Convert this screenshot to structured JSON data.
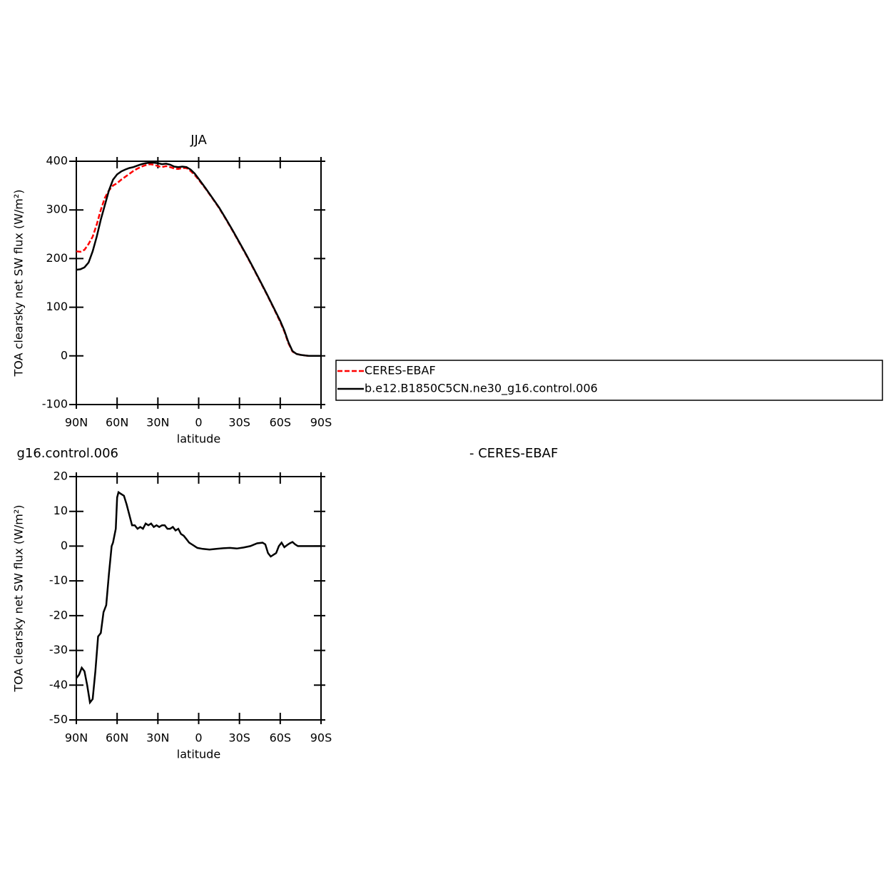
{
  "chart_data": [
    {
      "type": "line",
      "title": "JJA",
      "x_label": "latitude",
      "y_label": "TOA clearsky net SW flux (W/m²)",
      "x": [
        90,
        87,
        84,
        81,
        78,
        75,
        72,
        69,
        66,
        63,
        60,
        57,
        54,
        51,
        48,
        45,
        42,
        39,
        36,
        33,
        30,
        27,
        24,
        21,
        18,
        15,
        12,
        9,
        6,
        3,
        0,
        -5,
        -10,
        -15,
        -20,
        -25,
        -30,
        -35,
        -40,
        -45,
        -50,
        -55,
        -60,
        -63,
        -66,
        -69,
        -72,
        -75,
        -78,
        -81,
        -84,
        -87,
        -90
      ],
      "xlim": [
        90,
        -90
      ],
      "xticks": [
        {
          "value": 90,
          "label": "90N"
        },
        {
          "value": 60,
          "label": "60N"
        },
        {
          "value": 30,
          "label": "30N"
        },
        0,
        {
          "value": -30,
          "label": "30S"
        },
        {
          "value": -60,
          "label": "60S"
        },
        {
          "value": -90,
          "label": "90S"
        }
      ],
      "ylim": [
        -100,
        400
      ],
      "yticks": [
        -100,
        0,
        100,
        200,
        300,
        400
      ],
      "legend": "right",
      "series": [
        {
          "name": "CERES-EBAF",
          "color": "#ff0000",
          "dash": true,
          "values": [
            215,
            214,
            218,
            230,
            245,
            270,
            300,
            325,
            340,
            350,
            355,
            362,
            368,
            374,
            380,
            385,
            389,
            392,
            394,
            393,
            390,
            388,
            390,
            388,
            385,
            384,
            386,
            386,
            380,
            372,
            362,
            344,
            324,
            304,
            281,
            257,
            232,
            207,
            181,
            154,
            127,
            99,
            70,
            50,
            26,
            9,
            4,
            2,
            1,
            0,
            0,
            0,
            0
          ]
        },
        {
          "name": "b.e12.B1850C5CN.ne30_g16.control.006",
          "color": "#000000",
          "dash": false,
          "values": [
            177,
            178,
            182,
            192,
            215,
            245,
            280,
            310,
            340,
            362,
            373,
            379,
            383,
            386,
            388,
            391,
            394,
            396,
            397,
            397,
            396,
            394,
            395,
            393,
            389,
            388,
            389,
            388,
            383,
            375,
            364,
            345,
            325,
            305,
            282,
            258,
            233,
            208,
            182,
            155,
            128,
            100,
            72,
            52,
            28,
            10,
            4,
            2,
            1,
            0,
            0,
            0,
            0
          ]
        }
      ]
    },
    {
      "type": "line",
      "title": "g16.control.006",
      "subtitle": "- CERES-EBAF",
      "x_label": "latitude",
      "y_label": "TOA clearsky net SW flux (W/m²)",
      "x": [
        90,
        88,
        86,
        84,
        82,
        80,
        78,
        76,
        74,
        72,
        70,
        68,
        66,
        64,
        63,
        61,
        60,
        59,
        57,
        55,
        53,
        51,
        49,
        47,
        45,
        43,
        41,
        39,
        37,
        35,
        33,
        31,
        29,
        27,
        25,
        23,
        21,
        19,
        17,
        15,
        13,
        11,
        9,
        7,
        5,
        3,
        1,
        -3,
        -8,
        -13,
        -18,
        -23,
        -28,
        -33,
        -38,
        -43,
        -47,
        -49,
        -51,
        -53,
        -55,
        -57,
        -59,
        -61,
        -63,
        -65,
        -67,
        -69,
        -71,
        -73,
        -76,
        -80,
        -85,
        -90
      ],
      "xlim": [
        90,
        -90
      ],
      "xticks": [
        {
          "value": 90,
          "label": "90N"
        },
        {
          "value": 60,
          "label": "60N"
        },
        {
          "value": 30,
          "label": "30N"
        },
        0,
        {
          "value": -30,
          "label": "30S"
        },
        {
          "value": -60,
          "label": "60S"
        },
        {
          "value": -90,
          "label": "90S"
        }
      ],
      "ylim": [
        -50,
        20
      ],
      "yticks": [
        -50,
        -40,
        -30,
        -20,
        -10,
        0,
        10,
        20
      ],
      "series": [
        {
          "color": "#000000",
          "dash": false,
          "values": [
            -38,
            -37,
            -35,
            -36,
            -40,
            -45,
            -44,
            -36,
            -26,
            -25,
            -19,
            -17,
            -8,
            0,
            1,
            5,
            14,
            15.5,
            15,
            14.5,
            12,
            9,
            6,
            6,
            5,
            5.5,
            5,
            6.5,
            6,
            6.5,
            5.5,
            6,
            5.5,
            6,
            6,
            5,
            5,
            5.5,
            4.5,
            5,
            3.5,
            3,
            2,
            1,
            0.5,
            0,
            -0.5,
            -0.8,
            -1,
            -0.8,
            -0.6,
            -0.5,
            -0.7,
            -0.4,
            0,
            0.8,
            1,
            0.5,
            -2,
            -3,
            -2.5,
            -2,
            0,
            1,
            -0.3,
            0.3,
            0.8,
            1.2,
            0.5,
            0,
            0,
            0,
            0,
            0
          ]
        }
      ]
    }
  ]
}
